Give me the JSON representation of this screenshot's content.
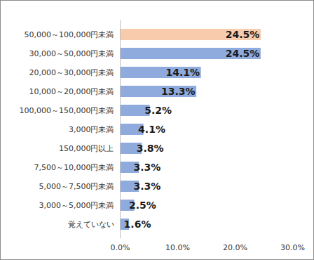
{
  "chart_data": {
    "type": "bar",
    "orientation": "horizontal",
    "categories": [
      "50,000～100,000円未満",
      "30,000～50,000円未満",
      "20,000～30,000円未満",
      "10,000～20,000円未満",
      "100,000～150,000円未満",
      "3,000円未満",
      "150,000円以上",
      "7,500～10,000円未満",
      "5,000～7,500円未満",
      "3,000～5,000円未満",
      "覚えていない"
    ],
    "values": [
      24.5,
      24.5,
      14.1,
      13.3,
      5.2,
      4.1,
      3.8,
      3.3,
      3.3,
      2.5,
      1.6
    ],
    "value_labels": [
      "24.5%",
      "24.5%",
      "14.1%",
      "13.3%",
      "5.2%",
      "4.1%",
      "3.8%",
      "3.3%",
      "3.3%",
      "2.5%",
      "1.6%"
    ],
    "colors": [
      "#f8cbad",
      "#8faadc",
      "#8faadc",
      "#8faadc",
      "#8faadc",
      "#8faadc",
      "#8faadc",
      "#8faadc",
      "#8faadc",
      "#8faadc",
      "#8faadc"
    ],
    "xlim": [
      0,
      30
    ],
    "xticks": [
      {
        "value": 0,
        "label": "0.0%"
      },
      {
        "value": 10,
        "label": "10.0%"
      },
      {
        "value": 20,
        "label": "20.0%"
      },
      {
        "value": 30,
        "label": "30.0%"
      }
    ],
    "grid": false,
    "data_labels": true
  }
}
